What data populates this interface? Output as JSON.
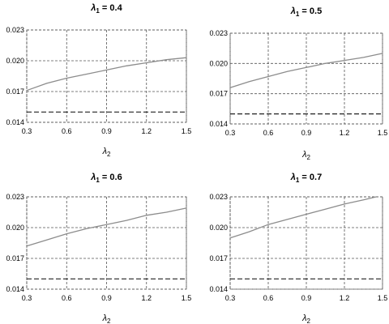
{
  "chart_data": [
    {
      "type": "line",
      "title_symbol": "λ",
      "title_sub": "1",
      "title_rest": " = 0.4",
      "xlabel_symbol": "λ",
      "xlabel_sub": "2",
      "xlim": [
        0.3,
        1.5
      ],
      "ylim": [
        0.014,
        0.023
      ],
      "xticks": [
        "0.3",
        "0.6",
        "0.9",
        "1.2",
        "1.5"
      ],
      "yticks": [
        "0.023",
        "0.020",
        "0.017",
        "0.014"
      ],
      "grid": true,
      "series": [
        {
          "style": "solid",
          "color": "#8c8c8c",
          "x": [
            0.3,
            0.45,
            0.6,
            0.75,
            0.9,
            1.05,
            1.2,
            1.35,
            1.5
          ],
          "y": [
            0.0171,
            0.0178,
            0.0183,
            0.0187,
            0.0191,
            0.0195,
            0.0198,
            0.0201,
            0.0203
          ]
        },
        {
          "style": "dashed",
          "color": "#222222",
          "x": [
            0.3,
            1.5
          ],
          "y": [
            0.015,
            0.015
          ]
        }
      ]
    },
    {
      "type": "line",
      "title_symbol": "λ",
      "title_sub": "1",
      "title_rest": " = 0.5",
      "xlabel_symbol": "λ",
      "xlabel_sub": "2",
      "xlim": [
        0.3,
        1.5
      ],
      "ylim": [
        0.014,
        0.023
      ],
      "xticks": [
        "0.3",
        "0.6",
        "0.9",
        "1.2",
        "1.5"
      ],
      "yticks": [
        "0.023",
        "0.020",
        "0.017",
        "0.014"
      ],
      "grid": true,
      "series": [
        {
          "style": "solid",
          "color": "#8c8c8c",
          "x": [
            0.3,
            0.45,
            0.6,
            0.75,
            0.9,
            1.05,
            1.2,
            1.35,
            1.5
          ],
          "y": [
            0.0176,
            0.0182,
            0.0187,
            0.0192,
            0.0196,
            0.02,
            0.0203,
            0.0206,
            0.021
          ]
        },
        {
          "style": "dashed",
          "color": "#222222",
          "x": [
            0.3,
            1.5
          ],
          "y": [
            0.015,
            0.015
          ]
        }
      ]
    },
    {
      "type": "line",
      "title_symbol": "λ",
      "title_sub": "1",
      "title_rest": " = 0.6",
      "xlabel_symbol": "λ",
      "xlabel_sub": "2",
      "xlim": [
        0.3,
        1.5
      ],
      "ylim": [
        0.014,
        0.023
      ],
      "xticks": [
        "0.3",
        "0.6",
        "0.9",
        "1.2",
        "1.5"
      ],
      "yticks": [
        "0.023",
        "0.020",
        "0.017",
        "0.014"
      ],
      "grid": true,
      "series": [
        {
          "style": "solid",
          "color": "#8c8c8c",
          "x": [
            0.3,
            0.45,
            0.6,
            0.75,
            0.9,
            1.05,
            1.2,
            1.35,
            1.5
          ],
          "y": [
            0.0182,
            0.0188,
            0.0194,
            0.0199,
            0.0203,
            0.0207,
            0.0212,
            0.0215,
            0.0219
          ]
        },
        {
          "style": "dashed",
          "color": "#222222",
          "x": [
            0.3,
            1.5
          ],
          "y": [
            0.015,
            0.015
          ]
        }
      ]
    },
    {
      "type": "line",
      "title_symbol": "λ",
      "title_sub": "1",
      "title_rest": " = 0.7",
      "xlabel_symbol": "λ",
      "xlabel_sub": "2",
      "xlim": [
        0.3,
        1.5
      ],
      "ylim": [
        0.014,
        0.023
      ],
      "xticks": [
        "0.3",
        "0.6",
        "0.9",
        "1.2",
        "1.5"
      ],
      "yticks": [
        "0.023",
        "0.020",
        "0.017",
        "0.014"
      ],
      "grid": true,
      "series": [
        {
          "style": "solid",
          "color": "#8c8c8c",
          "x": [
            0.3,
            0.45,
            0.6,
            0.75,
            0.9,
            1.05,
            1.2,
            1.35,
            1.45
          ],
          "y": [
            0.019,
            0.0196,
            0.0203,
            0.0208,
            0.0213,
            0.0218,
            0.0223,
            0.0227,
            0.023
          ]
        },
        {
          "style": "dashed",
          "color": "#222222",
          "x": [
            0.3,
            1.5
          ],
          "y": [
            0.015,
            0.015
          ]
        }
      ]
    }
  ]
}
